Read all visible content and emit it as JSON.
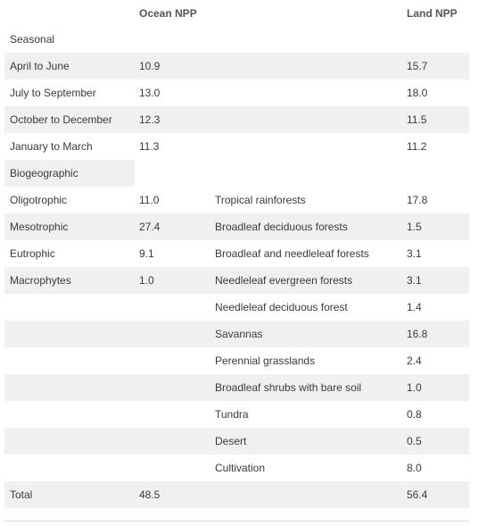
{
  "headers": {
    "ocean": "Ocean NPP",
    "land": "Land NPP"
  },
  "sections": {
    "seasonal": "Seasonal",
    "biogeographic": "Biogeographic"
  },
  "seasonal": [
    {
      "label": "April to June",
      "ocean": "10.9",
      "land": "15.7"
    },
    {
      "label": "July to September",
      "ocean": "13.0",
      "land": "18.0"
    },
    {
      "label": "October to December",
      "ocean": "12.3",
      "land": "11.5"
    },
    {
      "label": "January to March",
      "ocean": "11.3",
      "land": "11.2"
    }
  ],
  "biogeographic": [
    {
      "label": "Oligotrophic",
      "ocean": "11.0",
      "land_label": "Tropical rainforests",
      "land": "17.8"
    },
    {
      "label": "Mesotrophic",
      "ocean": "27.4",
      "land_label": "Broadleaf deciduous forests",
      "land": "1.5"
    },
    {
      "label": "Eutrophic",
      "ocean": "9.1",
      "land_label": "Broadleaf and needleleaf forests",
      "land": "3.1"
    },
    {
      "label": "Macrophytes",
      "ocean": "1.0",
      "land_label": "Needleleaf evergreen forests",
      "land": "3.1"
    },
    {
      "label": "",
      "ocean": "",
      "land_label": "Needleleaf deciduous forest",
      "land": "1.4"
    },
    {
      "label": "",
      "ocean": "",
      "land_label": "Savannas",
      "land": "16.8"
    },
    {
      "label": "",
      "ocean": "",
      "land_label": "Perennial grasslands",
      "land": "2.4"
    },
    {
      "label": "",
      "ocean": "",
      "land_label": "Broadleaf shrubs with bare soil",
      "land": "1.0"
    },
    {
      "label": "",
      "ocean": "",
      "land_label": "Tundra",
      "land": "0.8"
    },
    {
      "label": "",
      "ocean": "",
      "land_label": "Desert",
      "land": "0.5"
    },
    {
      "label": "",
      "ocean": "",
      "land_label": "Cultivation",
      "land": "8.0"
    }
  ],
  "total": {
    "label": "Total",
    "ocean": "48.5",
    "land": "56.4"
  }
}
